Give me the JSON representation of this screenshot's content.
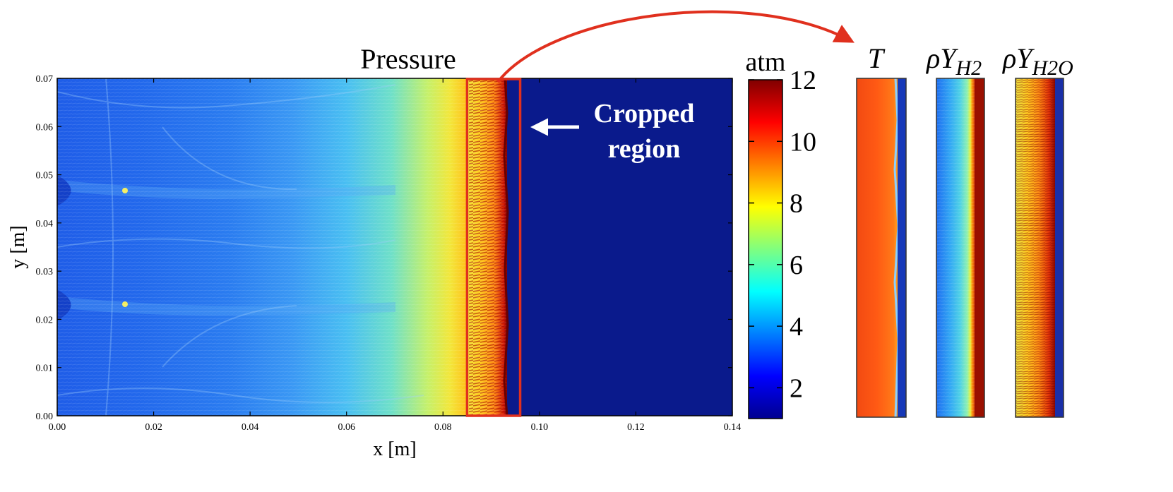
{
  "figure": {
    "title": "Pressure",
    "annotation": "Cropped region",
    "annotation_lines": [
      "Cropped",
      "region"
    ]
  },
  "chart_data": {
    "type": "heatmap",
    "title": "Pressure",
    "xlabel": "x [m]",
    "ylabel": "y [m]",
    "xlim": [
      0.0,
      0.14
    ],
    "ylim": [
      0.0,
      0.07
    ],
    "x_ticks": [
      0.0,
      0.02,
      0.04,
      0.06,
      0.08,
      0.1,
      0.12,
      0.14
    ],
    "x_tick_labels": [
      "0.00",
      "0.02",
      "0.04",
      "0.06",
      "0.08",
      "0.10",
      "0.12",
      "0.14"
    ],
    "y_ticks": [
      0.0,
      0.01,
      0.02,
      0.03,
      0.04,
      0.05,
      0.06,
      0.07
    ],
    "y_tick_labels": [
      "0.00",
      "0.01",
      "0.02",
      "0.03",
      "0.04",
      "0.05",
      "0.06",
      "0.07"
    ],
    "colorbar": {
      "unit": "atm",
      "range": [
        1,
        12
      ],
      "ticks": [
        2,
        4,
        6,
        8,
        10,
        12
      ],
      "tick_labels": [
        "2",
        "4",
        "6",
        "8",
        "10",
        "12"
      ],
      "colormap": "jet"
    },
    "cropped_region_x": [
      0.085,
      0.096
    ],
    "detonation_front_x": 0.092,
    "triple_points_y": [
      0.0465,
      0.0235
    ],
    "insets": [
      {
        "label": "T",
        "label_sub": ""
      },
      {
        "label": "ρY",
        "label_sub": "H2"
      },
      {
        "label": "ρY",
        "label_sub": "H2O"
      }
    ]
  },
  "colors": {
    "background": "#ffffff",
    "highlight_box": "#e0301e",
    "arrow_red": "#e0301e",
    "annotation_text": "#ffffff",
    "jet_low": "#0a1a8c",
    "jet_high": "#7f0000"
  }
}
